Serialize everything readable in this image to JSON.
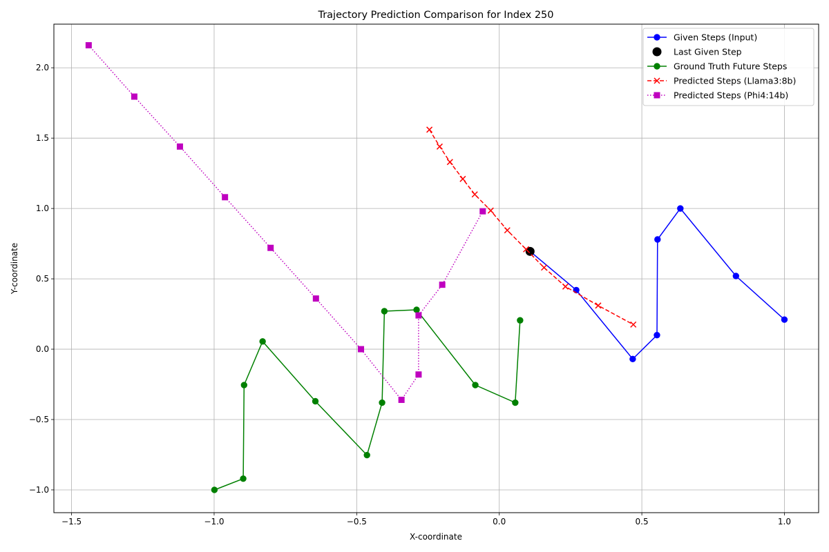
{
  "chart_data": {
    "type": "line",
    "title": "Trajectory Prediction Comparison for Index 250",
    "xlabel": "X-coordinate",
    "ylabel": "Y-coordinate",
    "xlim": [
      -1.562,
      1.12
    ],
    "ylim": [
      -1.162,
      2.31
    ],
    "xticks": [
      -1.5,
      -1.0,
      -0.5,
      0.0,
      0.5,
      1.0
    ],
    "xtick_labels": [
      "−1.5",
      "−1.0",
      "−0.5",
      "0.0",
      "0.5",
      "1.0"
    ],
    "yticks": [
      -1.0,
      -0.5,
      0.0,
      0.5,
      1.0,
      1.5,
      2.0
    ],
    "ytick_labels": [
      "−1.0",
      "−0.5",
      "0.0",
      "0.5",
      "1.0",
      "1.5",
      "2.0"
    ],
    "grid": true,
    "legend_position": "top-right",
    "series": [
      {
        "name": "Given Steps (Input)",
        "color": "#0000ff",
        "line_style": "solid",
        "marker": "circle",
        "points": [
          [
            1.0,
            0.21
          ],
          [
            0.83,
            0.52
          ],
          [
            0.635,
            1.0
          ],
          [
            0.555,
            0.78
          ],
          [
            0.553,
            0.1
          ],
          [
            0.468,
            -0.07
          ],
          [
            0.27,
            0.42
          ],
          [
            0.108,
            0.695
          ]
        ]
      },
      {
        "name": "Last Given Step",
        "color": "#000000",
        "line_style": "none",
        "marker": "large-circle",
        "points": [
          [
            0.108,
            0.695
          ]
        ]
      },
      {
        "name": "Ground Truth Future Steps",
        "color": "#008000",
        "line_style": "solid",
        "marker": "circle",
        "points": [
          [
            0.073,
            0.205
          ],
          [
            0.056,
            -0.38
          ],
          [
            -0.084,
            -0.255
          ],
          [
            -0.29,
            0.28
          ],
          [
            -0.403,
            0.27
          ],
          [
            -0.411,
            -0.38
          ],
          [
            -0.464,
            -0.753
          ],
          [
            -0.645,
            -0.37
          ],
          [
            -0.83,
            0.055
          ],
          [
            -0.895,
            -0.255
          ],
          [
            -0.898,
            -0.92
          ],
          [
            -0.999,
            -1.0
          ]
        ]
      },
      {
        "name": "Predicted Steps (Llama3:8b)",
        "color": "#ff0000",
        "line_style": "dashed",
        "marker": "x",
        "points": [
          [
            -0.245,
            1.56
          ],
          [
            -0.209,
            1.44
          ],
          [
            -0.173,
            1.33
          ],
          [
            -0.128,
            1.21
          ],
          [
            -0.086,
            1.1
          ],
          [
            -0.03,
            0.985
          ],
          [
            0.028,
            0.845
          ],
          [
            0.094,
            0.71
          ],
          [
            0.157,
            0.58
          ],
          [
            0.232,
            0.445
          ],
          [
            0.347,
            0.31
          ],
          [
            0.47,
            0.175
          ]
        ]
      },
      {
        "name": "Predicted Steps (Phi4:14b)",
        "color": "#bf00bf",
        "line_style": "dotted",
        "marker": "square",
        "points": [
          [
            -1.44,
            2.16
          ],
          [
            -1.28,
            1.795
          ],
          [
            -1.12,
            1.44
          ],
          [
            -0.962,
            1.08
          ],
          [
            -0.802,
            0.72
          ],
          [
            -0.643,
            0.36
          ],
          [
            -0.485,
            0.0
          ],
          [
            -0.343,
            -0.36
          ],
          [
            -0.283,
            -0.18
          ],
          [
            -0.283,
            0.24
          ],
          [
            -0.2,
            0.458
          ],
          [
            -0.058,
            0.98
          ]
        ]
      }
    ]
  }
}
